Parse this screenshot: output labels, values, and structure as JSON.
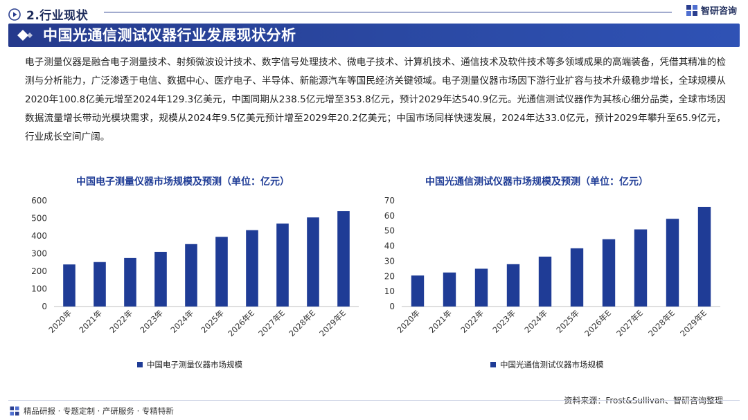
{
  "header": {
    "section_title": "2.行业现状",
    "brand_name": "智研咨询"
  },
  "banner": {
    "title": "中国光通信测试仪器行业发展现状分析"
  },
  "intro_text": "电子测量仪器是融合电子测量技术、射频微波设计技术、数字信号处理技术、微电子技术、计算机技术、通信技术及软件技术等多领域成果的高端装备，凭借其精准的检测与分析能力，广泛渗透于电信、数据中心、医疗电子、半导体、新能源汽车等国民经济关键领域。电子测量仪器市场因下游行业扩容与技术升级稳步增长，全球规模从2020年100.8亿美元增至2024年129.3亿美元，中国同期从238.5亿元增至353.8亿元，预计2029年达540.9亿元。光通信测试仪器作为其核心细分品类，全球市场因数据流量增长带动光模块需求，规模从2024年9.5亿美元预计增至2029年20.2亿美元；中国市场同样快速发展，2024年达33.0亿元，预计2029年攀升至65.9亿元，行业成长空间广阔。",
  "colors": {
    "bar": "#1f3c96",
    "title": "#1f3c96",
    "banner": "#253a8c"
  },
  "chart_data": [
    {
      "type": "bar",
      "title": "中国电子测量仪器市场规模及预测（单位：亿元）",
      "categories": [
        "2020年",
        "2021年",
        "2022年",
        "2023年",
        "2024年",
        "2025年",
        "2026年E",
        "2027年E",
        "2028年E",
        "2029年E"
      ],
      "series": [
        {
          "name": "中国电子测量仪器市场规模",
          "values": [
            238.5,
            252.0,
            275.0,
            310.0,
            353.8,
            395.0,
            433.0,
            470.0,
            505.0,
            540.9
          ]
        }
      ],
      "ylim": [
        0,
        600
      ],
      "yticks": [
        0,
        100,
        200,
        300,
        400,
        500,
        600
      ],
      "grid": false,
      "legend": "bottom"
    },
    {
      "type": "bar",
      "title": "中国光通信测试仪器市场规模及预测（单位：亿元）",
      "categories": [
        "2020年",
        "2021年",
        "2022年",
        "2023年",
        "2024年",
        "2025年",
        "2026年E",
        "2027年E",
        "2028年E",
        "2029年E"
      ],
      "series": [
        {
          "name": "中国光通信测试仪器市场规模",
          "values": [
            20.5,
            22.5,
            25.0,
            28.0,
            33.0,
            38.5,
            44.5,
            51.0,
            58.0,
            65.9
          ]
        }
      ],
      "ylim": [
        0,
        70
      ],
      "yticks": [
        0,
        10,
        20,
        30,
        40,
        50,
        60,
        70
      ],
      "grid": false,
      "legend": "bottom"
    }
  ],
  "footer": {
    "services": "精品研报 · 专题定制 · 产研服务 · 专精特新",
    "source": "资料来源：Frost&Sullivan、智研咨询整理"
  }
}
